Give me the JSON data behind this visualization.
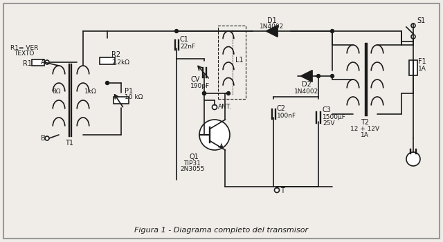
{
  "title": "Figura 1 - Diagrama completo del transmisor",
  "bg_color": "#f0ede8",
  "line_color": "#1a1a1a",
  "lw": 1.2,
  "components": {
    "R1_label": "R1",
    "R1_sub": "R1= VER\nTEXTO",
    "R1_val": "8Ω",
    "R2_label": "R2",
    "R2_val": "2,2kΩ",
    "P1_label": "P1",
    "P1_val": "10 kΩ",
    "C1_label": "C1",
    "C1_val": "22nF",
    "CV_label": "CV",
    "CV_val": "190pF",
    "L1_label": "L1",
    "T1_label": "T1",
    "Q1_label": "Q1",
    "Q1_val": "TIP31\n2N3055",
    "ANT_label": "ANT.",
    "T_label": "T",
    "D1_label": "D1",
    "D1_val": "1N4002",
    "D2_label": "D2",
    "D2_val": "1N4002",
    "C2_label": "C2",
    "C2_val": "100nF",
    "C3_label": "C3",
    "C3_val": "1500μF\n25V",
    "T2_label": "T2",
    "T2_val": "12 + 12V\n1A",
    "F1_label": "F1",
    "F1_val": "1A",
    "S1_label": "S1",
    "A_label": "A",
    "B_label": "B"
  }
}
